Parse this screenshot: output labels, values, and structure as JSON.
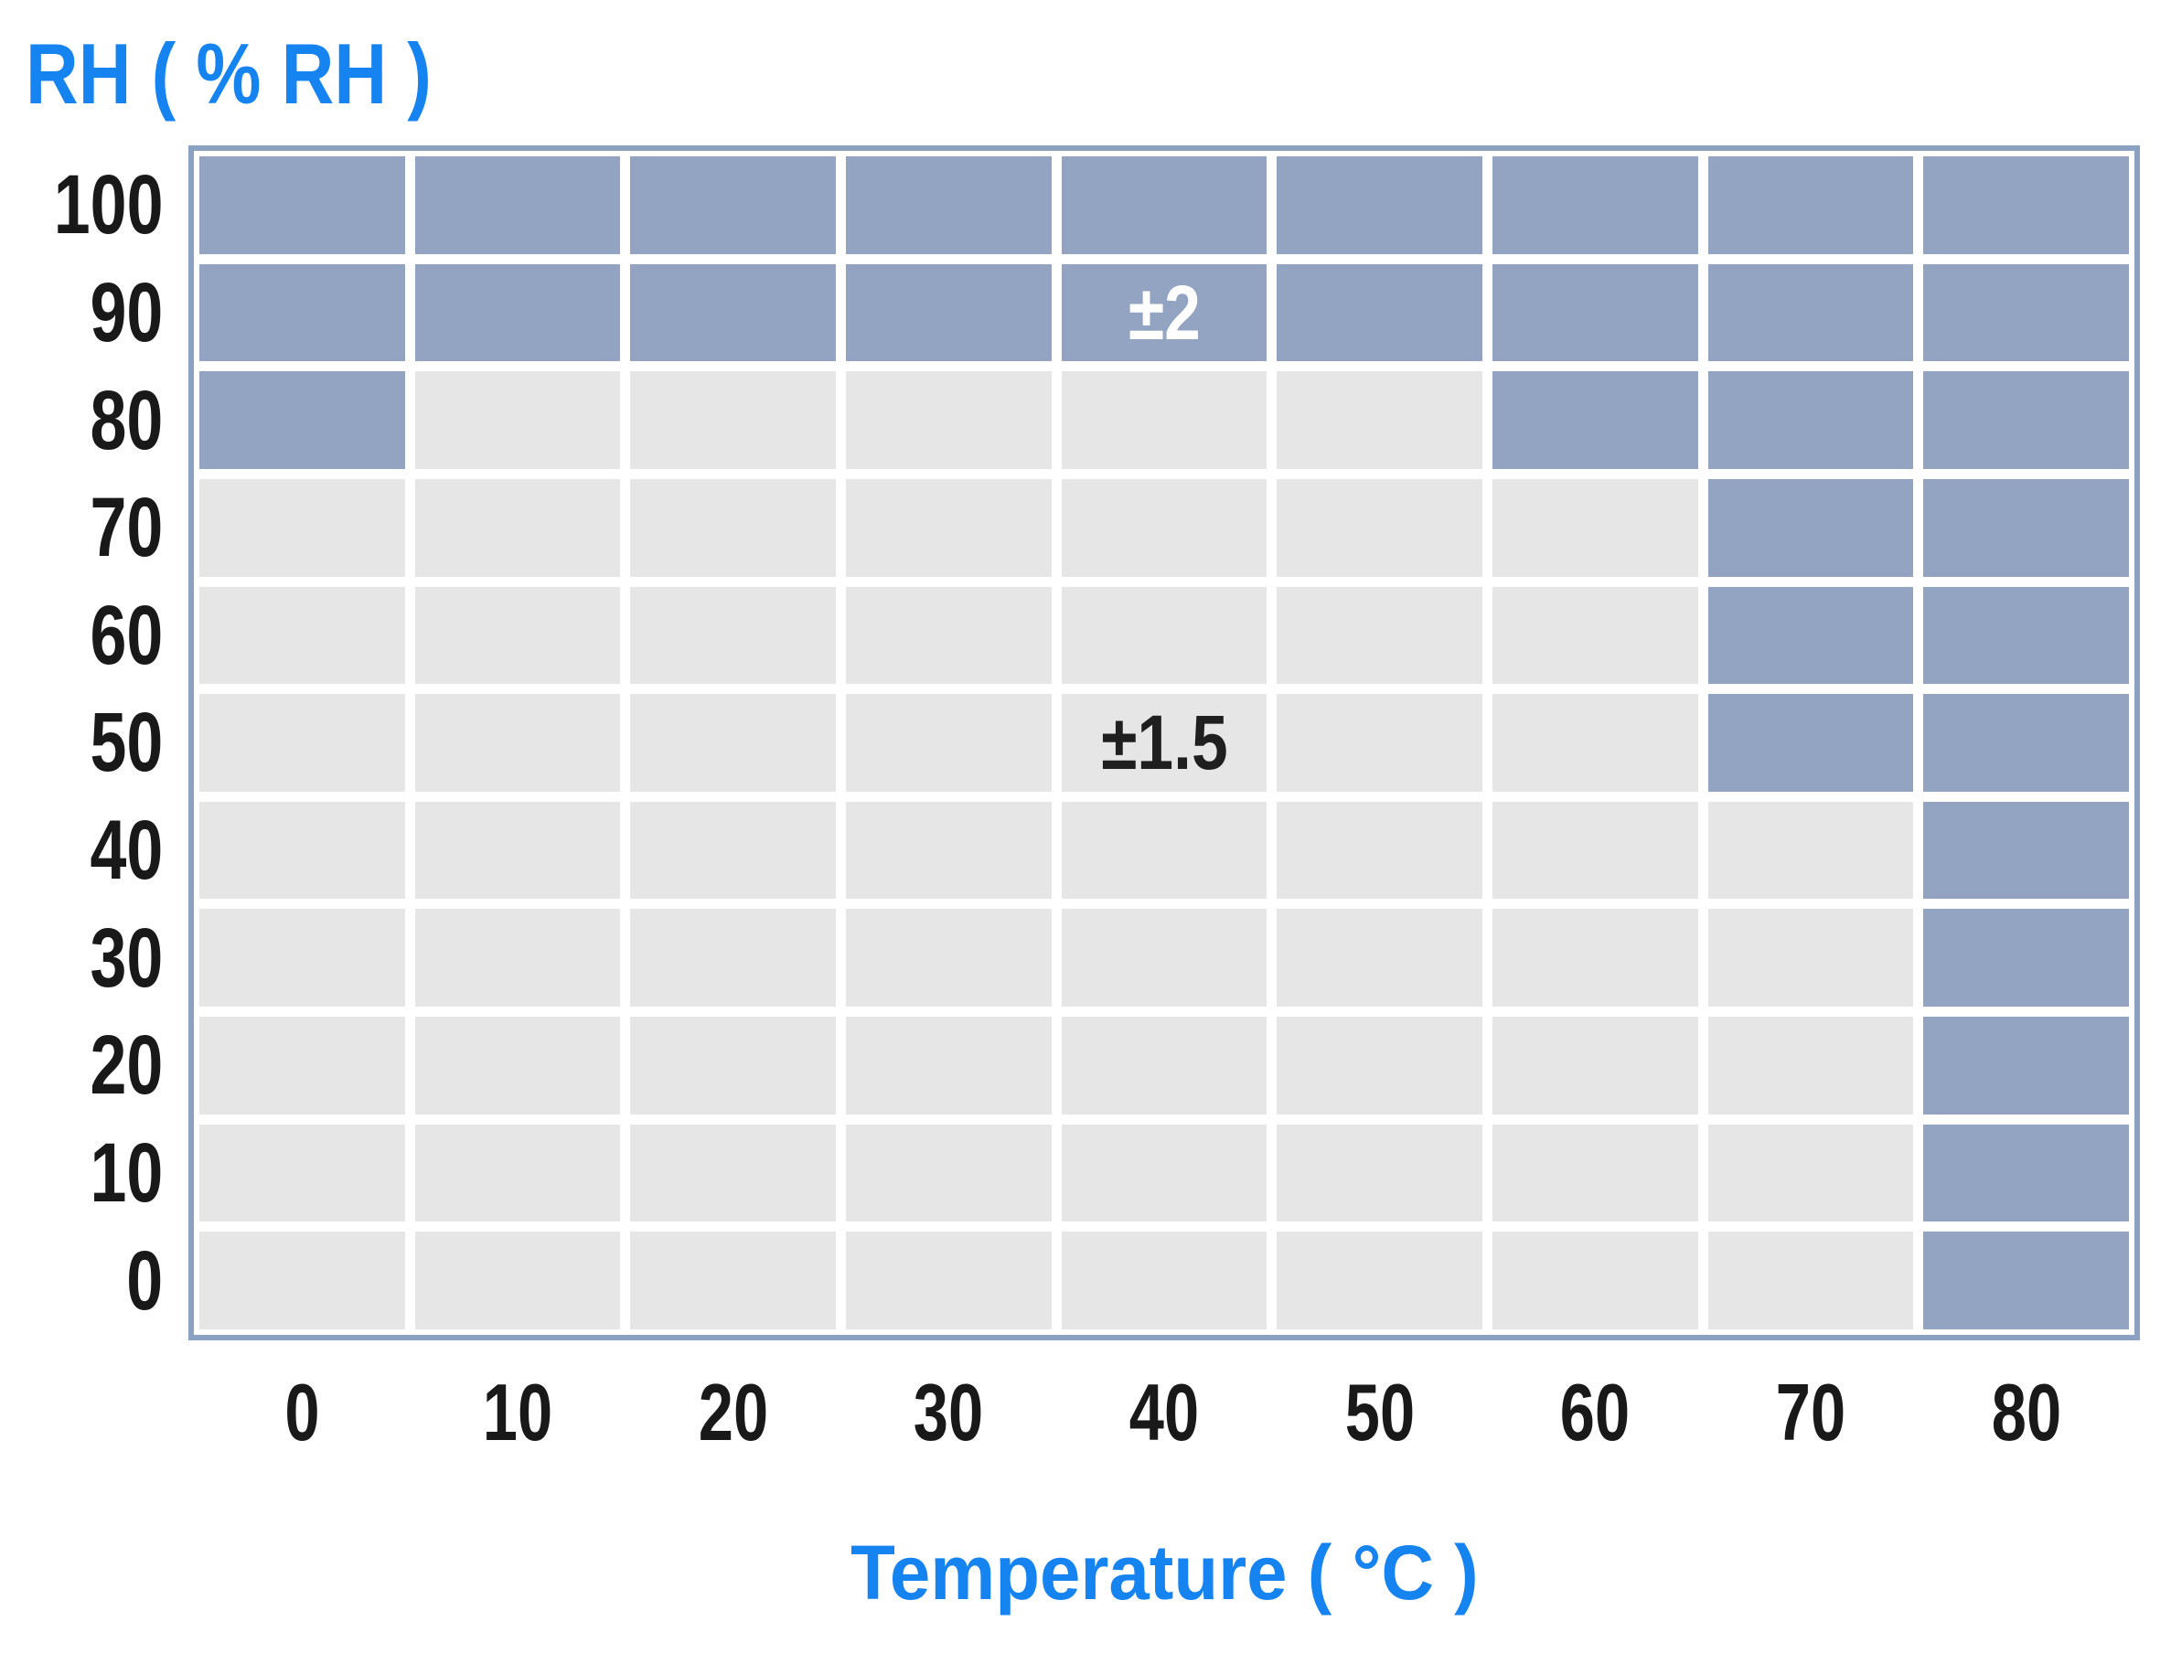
{
  "title": "RH ( % RH )",
  "xlabel": "Temperature ( °C )",
  "chart_data": {
    "type": "heatmap",
    "y_axis_label": "RH ( % RH )",
    "x_axis_label": "Temperature ( °C )",
    "x_categories": [
      "0",
      "10",
      "20",
      "30",
      "40",
      "50",
      "60",
      "70",
      "80"
    ],
    "y_categories": [
      "100",
      "90",
      "80",
      "70",
      "60",
      "50",
      "40",
      "30",
      "20",
      "10",
      "0"
    ],
    "zones": {
      "1": {
        "label": "±2",
        "color": "#92a4c2",
        "text_color": "#ffffff"
      },
      "0": {
        "label": "±1.5",
        "color": "#e6e6e6",
        "text_color": "#1f1f1f"
      }
    },
    "matrix": [
      [
        1,
        1,
        1,
        1,
        1,
        1,
        1,
        1,
        1
      ],
      [
        1,
        1,
        1,
        1,
        1,
        1,
        1,
        1,
        1
      ],
      [
        1,
        0,
        0,
        0,
        0,
        0,
        1,
        1,
        1
      ],
      [
        0,
        0,
        0,
        0,
        0,
        0,
        0,
        1,
        1
      ],
      [
        0,
        0,
        0,
        0,
        0,
        0,
        0,
        1,
        1
      ],
      [
        0,
        0,
        0,
        0,
        0,
        0,
        0,
        1,
        1
      ],
      [
        0,
        0,
        0,
        0,
        0,
        0,
        0,
        0,
        1
      ],
      [
        0,
        0,
        0,
        0,
        0,
        0,
        0,
        0,
        1
      ],
      [
        0,
        0,
        0,
        0,
        0,
        0,
        0,
        0,
        1
      ],
      [
        0,
        0,
        0,
        0,
        0,
        0,
        0,
        0,
        1
      ],
      [
        0,
        0,
        0,
        0,
        0,
        0,
        0,
        0,
        1
      ]
    ],
    "annotations": [
      {
        "text": "±2",
        "row": 1,
        "col": 4,
        "y_category": "90",
        "x_category": "40",
        "color": "#ffffff"
      },
      {
        "text": "±1.5",
        "row": 5,
        "col": 4,
        "y_category": "50",
        "x_category": "40",
        "color": "#1f1f1f"
      }
    ],
    "colors": {
      "accent_blue": "#1583f0",
      "cell_blue": "#92a4c2",
      "cell_gray": "#e6e6e6",
      "frame_border": "#8ba1c2",
      "tick_text": "#191919",
      "background": "#ffffff"
    },
    "grid": "white gaps between cells",
    "legend_position": "none"
  }
}
